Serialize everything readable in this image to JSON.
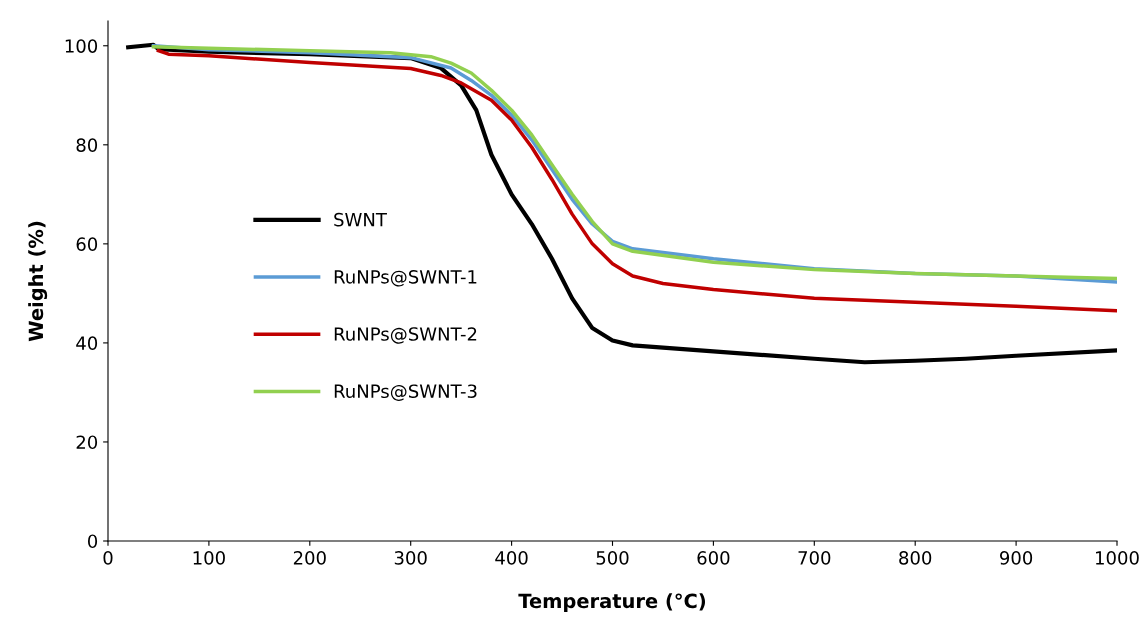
{
  "chart_data": {
    "type": "line",
    "xlabel": "Temperature (°C)",
    "ylabel": "Weight (%)",
    "xlim": [
      0,
      1000
    ],
    "ylim": [
      0,
      105
    ],
    "xticks": [
      0,
      100,
      200,
      300,
      400,
      500,
      600,
      700,
      800,
      900,
      1000
    ],
    "yticks": [
      0,
      20,
      40,
      60,
      80,
      100
    ],
    "grid": false,
    "legend": "left",
    "marker": "none",
    "line_style": "solid",
    "series": [
      {
        "name": "SWNT",
        "color": "#000000",
        "x": [
          20,
          45,
          50,
          100,
          200,
          300,
          330,
          350,
          365,
          380,
          400,
          420,
          440,
          460,
          480,
          500,
          520,
          600,
          700,
          750,
          800,
          850,
          900,
          1000
        ],
        "values": [
          99.7,
          100.2,
          99.3,
          98.8,
          98.3,
          97.5,
          95.5,
          92,
          87,
          78,
          70,
          64,
          57,
          49,
          43,
          40.5,
          39.5,
          38.3,
          36.8,
          36.1,
          36.4,
          36.8,
          37.4,
          38.5
        ]
      },
      {
        "name": "RuNPs@SWNT-1",
        "color": "#5b9bd5",
        "x": [
          45,
          100,
          200,
          300,
          340,
          360,
          380,
          400,
          420,
          440,
          460,
          480,
          500,
          520,
          600,
          700,
          800,
          900,
          1000
        ],
        "values": [
          100,
          99.2,
          98.6,
          97.6,
          95.5,
          93,
          90,
          86,
          81,
          75,
          69,
          64,
          60.5,
          59,
          57,
          55,
          54,
          53.5,
          52.3
        ]
      },
      {
        "name": "RuNPs@SWNT-2",
        "color": "#c00000",
        "x": [
          50,
          60,
          100,
          200,
          300,
          330,
          350,
          380,
          400,
          420,
          440,
          460,
          480,
          500,
          520,
          550,
          600,
          700,
          800,
          900,
          1000
        ],
        "values": [
          99,
          98.3,
          98,
          96.6,
          95.4,
          94,
          92.5,
          89,
          85,
          79.5,
          73,
          66,
          60,
          56,
          53.5,
          52,
          50.8,
          49,
          48.2,
          47.4,
          46.5
        ]
      },
      {
        "name": "RuNPs@SWNT-3",
        "color": "#92d050",
        "x": [
          45,
          100,
          200,
          280,
          320,
          340,
          360,
          380,
          400,
          420,
          440,
          460,
          480,
          500,
          520,
          600,
          700,
          800,
          900,
          1000
        ],
        "values": [
          99.8,
          99.5,
          99,
          98.6,
          97.8,
          96.5,
          94.5,
          91,
          87,
          82,
          76,
          70,
          64.5,
          60,
          58.5,
          56.3,
          54.8,
          54,
          53.5,
          53
        ]
      }
    ]
  }
}
